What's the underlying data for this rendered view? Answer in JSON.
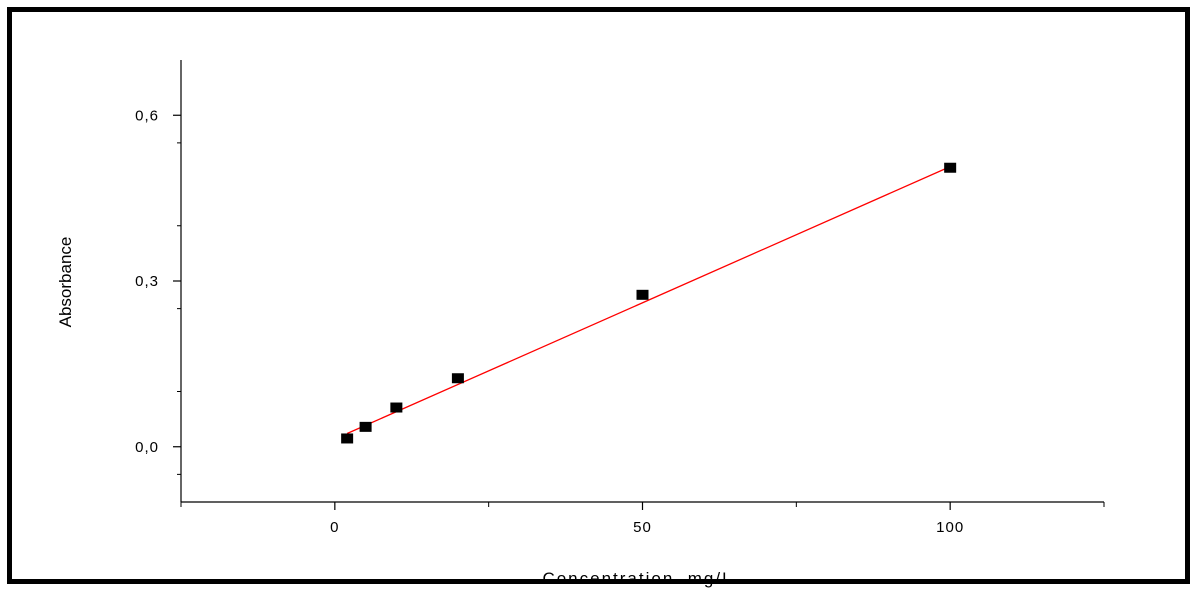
{
  "chart_data": {
    "type": "scatter",
    "xlabel": "Concentration  mg/L",
    "ylabel": "Absorbance",
    "xlim": [
      -25,
      125
    ],
    "ylim": [
      -0.1,
      0.7
    ],
    "x_ticks": [
      0,
      50,
      100
    ],
    "x_tick_labels": [
      "0",
      "50",
      "100"
    ],
    "y_ticks": [
      0.0,
      0.3,
      0.6
    ],
    "y_tick_labels": [
      "0,0",
      "0,3",
      "0,6"
    ],
    "grid": false,
    "series": [
      {
        "marker": "square",
        "color": "#000000",
        "x": [
          2,
          5,
          10,
          20,
          50,
          100
        ],
        "y": [
          0.015,
          0.036,
          0.071,
          0.124,
          0.275,
          0.505
        ]
      }
    ],
    "fit_line": {
      "color": "#ff0000",
      "x": [
        2,
        100
      ],
      "y": [
        0.024,
        0.507
      ]
    }
  }
}
